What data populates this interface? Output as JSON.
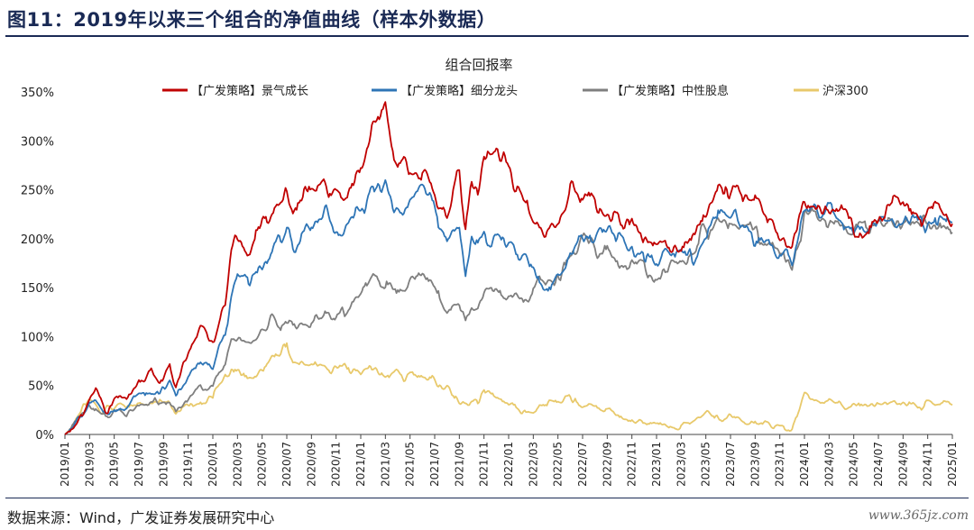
{
  "figure_title": "图11：2019年以来三个组合的净值曲线（样本外数据）",
  "source_text": "数据来源：Wind，广发证券发展研究中心",
  "watermark_text": "www.365jz.com",
  "chart_data": {
    "type": "line",
    "title": "组合回报率",
    "xlabel": "",
    "ylabel": "",
    "ylim": [
      0,
      350
    ],
    "y_ticks": [
      0,
      50,
      100,
      150,
      200,
      250,
      300,
      350
    ],
    "y_tick_labels": [
      "0%",
      "50%",
      "100%",
      "150%",
      "200%",
      "250%",
      "300%",
      "350%"
    ],
    "x_tick_labels": [
      "2019/01",
      "2019/03",
      "2019/05",
      "2019/07",
      "2019/09",
      "2019/11",
      "2020/01",
      "2020/03",
      "2020/05",
      "2020/07",
      "2020/09",
      "2020/11",
      "2021/01",
      "2021/03",
      "2021/05",
      "2021/07",
      "2021/09",
      "2021/11",
      "2022/01",
      "2022/03",
      "2022/05",
      "2022/07",
      "2022/09",
      "2022/11",
      "2023/01",
      "2023/03",
      "2023/05",
      "2023/07",
      "2023/09",
      "2023/11",
      "2024/01",
      "2024/03",
      "2024/05",
      "2024/07",
      "2024/09",
      "2024/11",
      "2025/01"
    ],
    "legend_position": "top",
    "grid": false,
    "x_month_index": [
      0,
      0.5,
      1,
      1.5,
      2,
      2.5,
      3,
      3.5,
      4,
      4.5,
      5,
      6,
      7,
      8,
      8.5,
      9,
      10,
      11,
      12,
      12.5,
      13,
      13.5,
      14,
      15,
      16,
      17,
      18,
      18.5,
      19,
      20,
      21,
      22,
      23,
      24,
      25,
      26,
      26.5,
      27,
      28,
      29,
      30,
      31,
      32,
      32.5,
      33,
      33.5,
      34,
      35,
      36,
      37,
      38,
      39,
      40,
      41,
      41.5,
      42,
      43,
      44,
      44.5,
      45,
      46,
      47,
      48,
      49,
      50,
      51,
      52,
      53,
      54,
      55,
      56,
      57,
      58,
      59,
      60,
      61,
      62,
      63,
      64,
      65,
      66,
      67,
      68,
      68.5,
      69,
      69.5,
      70,
      71,
      72
    ],
    "series": [
      {
        "name": "【广发策略】景气成长",
        "color": "#c00000",
        "values": [
          0,
          5,
          15,
          25,
          40,
          48,
          30,
          25,
          38,
          40,
          35,
          55,
          62,
          58,
          70,
          52,
          85,
          110,
          90,
          115,
          130,
          185,
          200,
          190,
          210,
          235,
          255,
          230,
          240,
          250,
          260,
          240,
          250,
          270,
          320,
          335,
          300,
          285,
          275,
          262,
          250,
          230,
          270,
          210,
          260,
          250,
          290,
          300,
          270,
          240,
          225,
          205,
          220,
          250,
          245,
          240,
          235,
          230,
          225,
          220,
          215,
          200,
          195,
          190,
          185,
          200,
          220,
          255,
          250,
          240,
          245,
          220,
          200,
          190,
          230,
          230,
          235,
          238,
          212,
          205,
          220,
          230,
          230,
          228,
          232,
          225,
          228,
          230,
          224
        ]
      },
      {
        "name": "【广发策略】细分龙头",
        "color": "#2e75b6",
        "values": [
          0,
          5,
          15,
          22,
          32,
          30,
          25,
          20,
          28,
          30,
          28,
          40,
          45,
          45,
          50,
          40,
          60,
          80,
          70,
          90,
          100,
          140,
          160,
          155,
          170,
          190,
          210,
          190,
          200,
          210,
          225,
          210,
          220,
          235,
          255,
          260,
          240,
          230,
          240,
          250,
          235,
          195,
          210,
          165,
          200,
          185,
          200,
          200,
          190,
          180,
          165,
          150,
          155,
          185,
          195,
          200,
          205,
          210,
          205,
          200,
          195,
          180,
          180,
          185,
          185,
          175,
          210,
          230,
          230,
          215,
          205,
          195,
          180,
          180,
          220,
          225,
          225,
          225,
          215,
          210,
          215,
          218,
          215,
          215,
          218,
          214,
          216,
          218,
          214
        ]
      },
      {
        "name": "【广发策略】中性股息",
        "color": "#7f7f7f",
        "values": [
          0,
          5,
          14,
          20,
          30,
          28,
          18,
          15,
          22,
          24,
          22,
          28,
          32,
          30,
          35,
          25,
          40,
          50,
          45,
          60,
          70,
          95,
          100,
          95,
          110,
          115,
          115,
          108,
          110,
          112,
          120,
          120,
          128,
          140,
          155,
          150,
          148,
          140,
          150,
          158,
          155,
          125,
          135,
          115,
          130,
          130,
          145,
          150,
          145,
          140,
          150,
          155,
          165,
          185,
          192,
          195,
          190,
          185,
          180,
          170,
          175,
          170,
          165,
          165,
          175,
          185,
          210,
          225,
          220,
          215,
          205,
          195,
          180,
          178,
          218,
          220,
          215,
          222,
          212,
          210,
          215,
          216,
          214,
          214,
          217,
          213,
          215,
          216,
          210
        ]
      },
      {
        "name": "沪深300",
        "color": "#e8c96b",
        "values": [
          0,
          6,
          16,
          28,
          35,
          30,
          22,
          25,
          28,
          30,
          28,
          30,
          32,
          30,
          35,
          25,
          28,
          35,
          40,
          50,
          58,
          60,
          60,
          60,
          65,
          80,
          90,
          72,
          75,
          75,
          72,
          68,
          65,
          62,
          65,
          60,
          65,
          62,
          60,
          62,
          55,
          45,
          30,
          28,
          38,
          32,
          45,
          40,
          30,
          25,
          22,
          28,
          35,
          38,
          35,
          32,
          30,
          28,
          25,
          20,
          15,
          12,
          10,
          8,
          10,
          15,
          20,
          18,
          17,
          15,
          12,
          10,
          8,
          6,
          40,
          35,
          33,
          30,
          29,
          30,
          31,
          32,
          31,
          30,
          31,
          30,
          30,
          31,
          29
        ]
      }
    ]
  }
}
